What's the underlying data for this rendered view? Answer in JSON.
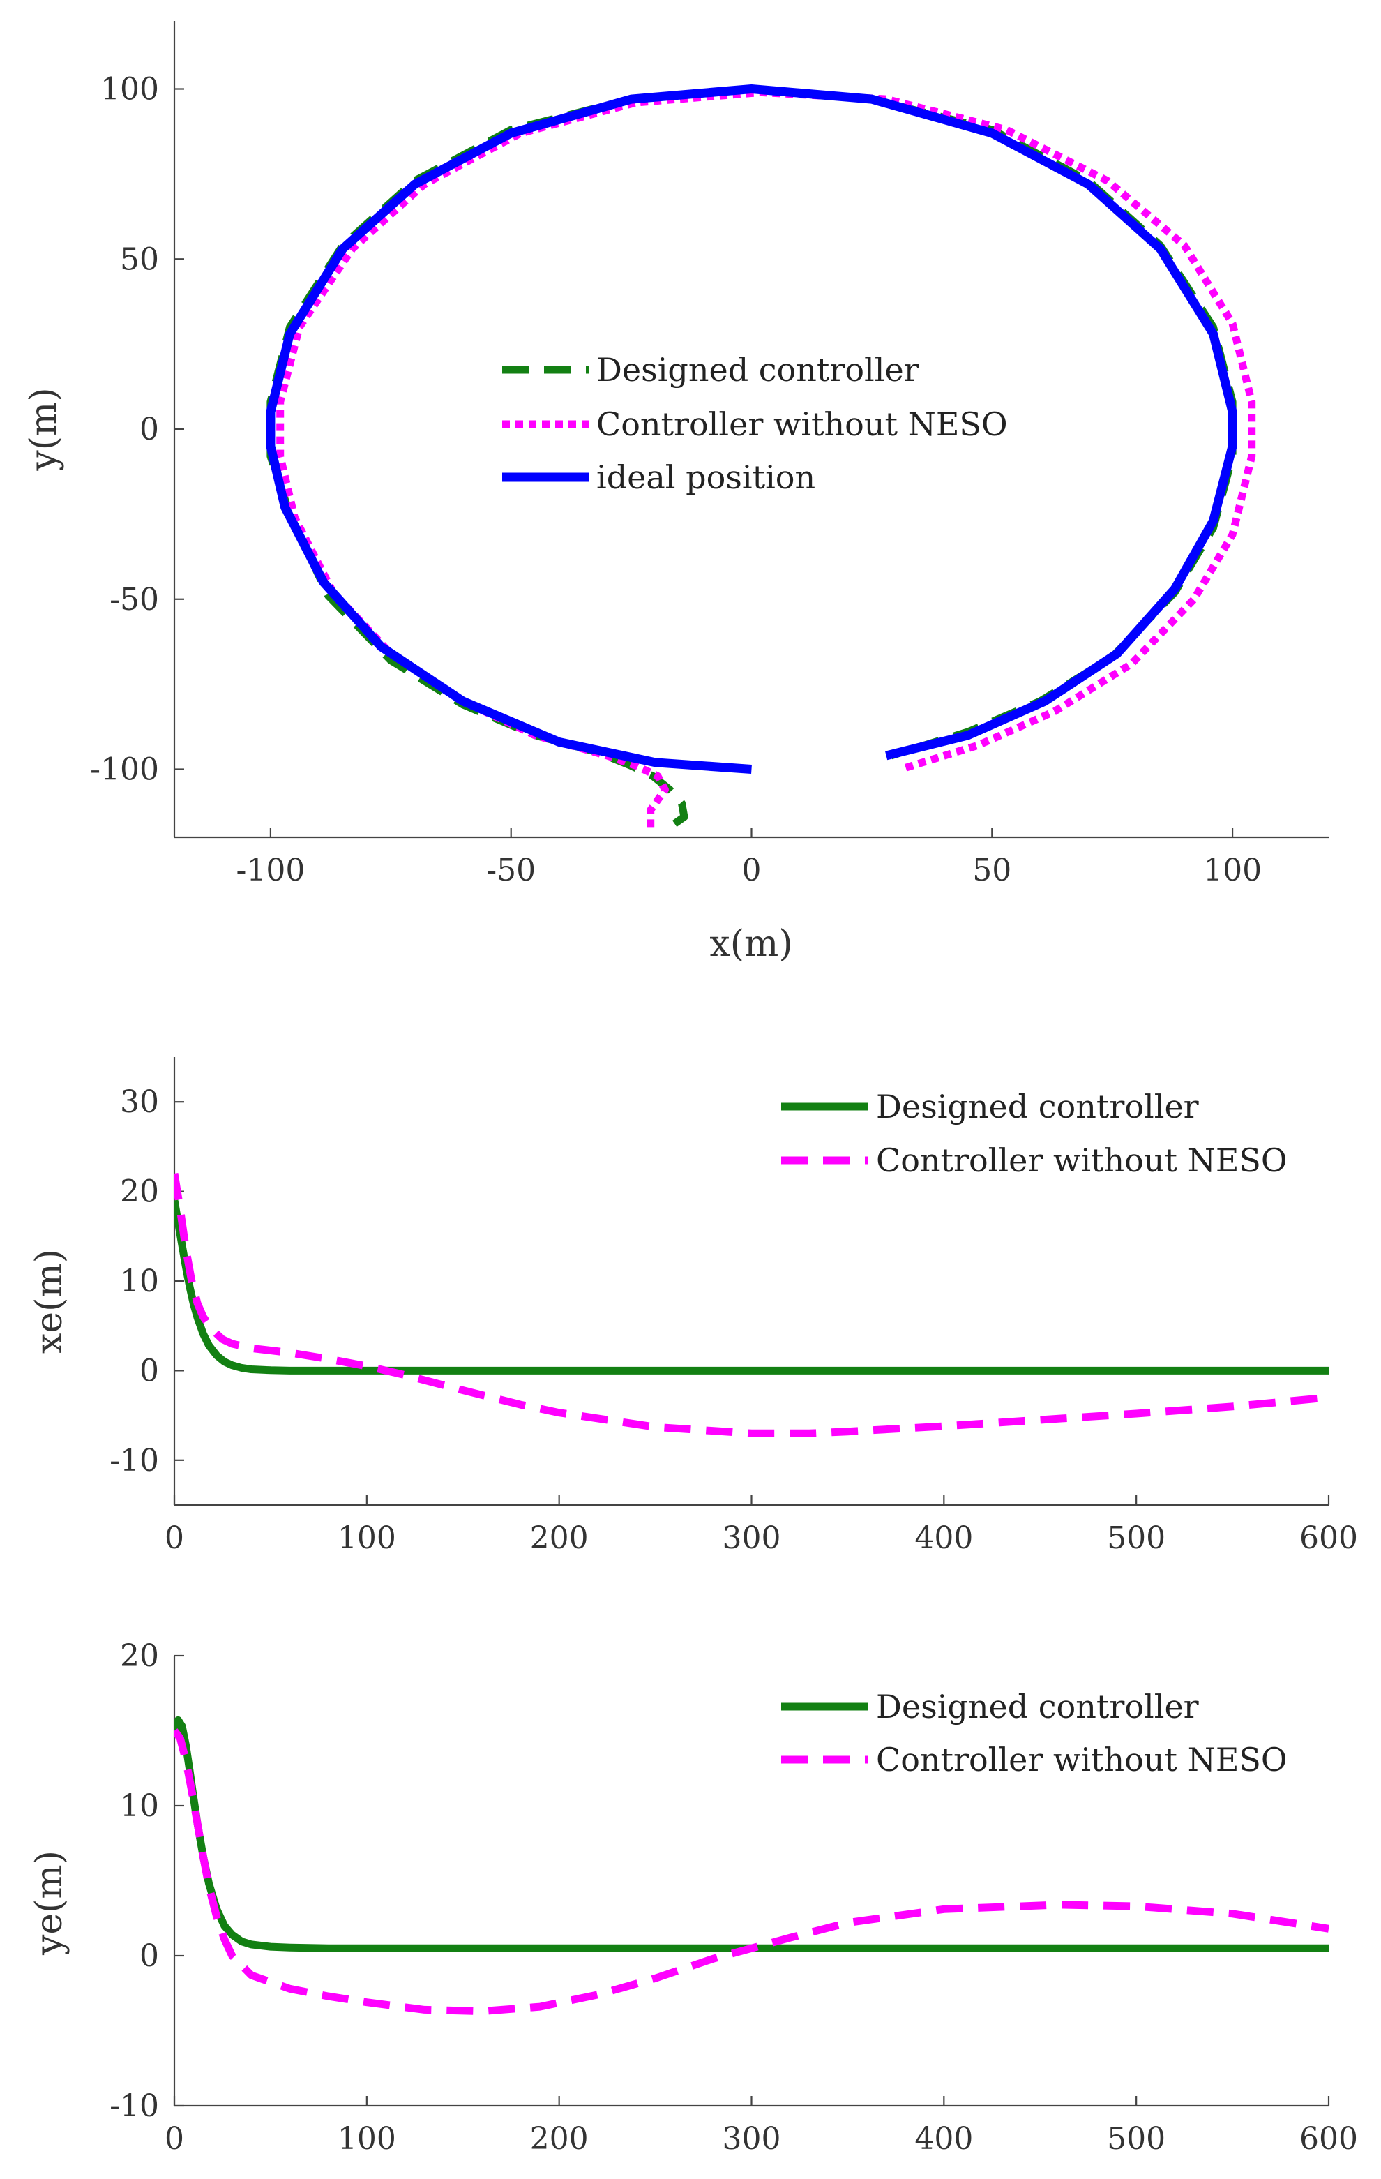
{
  "colors": {
    "designed": "#138013",
    "without_neso": "#ff00ff",
    "ideal": "#0000ff",
    "axis": "#444444"
  },
  "chart_data": [
    {
      "id": "trajectory",
      "type": "line",
      "title": "",
      "xlabel": "x(m)",
      "ylabel": "y(m)",
      "xlim": [
        -120,
        120
      ],
      "ylim": [
        -120,
        120
      ],
      "xticks": [
        -100,
        -50,
        0,
        50,
        100
      ],
      "yticks": [
        -100,
        -50,
        0,
        50,
        100
      ],
      "xtick_labels": [
        "-100",
        "-50",
        "0",
        "50",
        "100"
      ],
      "ytick_labels": [
        "-100",
        "-50",
        "0",
        "50",
        "100"
      ],
      "legend_position": "center",
      "series": [
        {
          "name": "Designed controller",
          "style": "dashed",
          "color": "#138013",
          "x": [
            -16,
            -14,
            -14.5,
            -17,
            -20.5,
            -25,
            -32,
            -45,
            -60,
            -75,
            -88,
            -96,
            -100,
            -100,
            -96,
            -85,
            -70,
            -50,
            -25,
            0,
            25,
            50,
            70,
            85,
            96,
            100,
            100,
            96,
            88,
            75,
            60,
            45,
            29
          ],
          "y": [
            -116,
            -114,
            -110,
            -106,
            -102,
            -99,
            -95,
            -90,
            -81,
            -68,
            -49,
            -25,
            -8,
            8,
            30,
            54,
            73,
            88,
            97,
            100,
            97,
            88,
            73,
            54,
            30,
            8,
            -8,
            -29,
            -48,
            -67,
            -80,
            -89,
            -96
          ]
        },
        {
          "name": "Controller without NESO",
          "style": "dotted",
          "color": "#ff00ff",
          "x": [
            -21,
            -21,
            -18,
            -19.5,
            -24,
            -30,
            -45,
            -60,
            -75,
            -87,
            -95,
            -98,
            -98,
            -94,
            -83,
            -68,
            -48,
            -24,
            2,
            28,
            53,
            74,
            90,
            100,
            104,
            104,
            100,
            92,
            79,
            63,
            47,
            31
          ],
          "y": [
            -117,
            -112,
            -106,
            -102,
            -99,
            -96,
            -90,
            -80,
            -66,
            -48,
            -26,
            -8,
            8,
            30,
            53,
            72,
            87,
            96,
            99,
            97,
            88,
            73,
            54,
            31,
            8,
            -8,
            -31,
            -50,
            -69,
            -83,
            -93,
            -100
          ]
        },
        {
          "name": "ideal position",
          "style": "solid",
          "color": "#0000ff",
          "x": [
            0,
            -20,
            -40,
            -60,
            -77,
            -89,
            -97,
            -100,
            -100,
            -96,
            -85,
            -70,
            -50,
            -25,
            0,
            25,
            50,
            70,
            85,
            96,
            100,
            100,
            96,
            88,
            76,
            61,
            45,
            28
          ],
          "y": [
            -100,
            -98,
            -92,
            -80,
            -64,
            -45,
            -23,
            -5,
            5,
            28,
            53,
            72,
            87,
            97,
            100,
            97,
            87,
            72,
            53,
            28,
            5,
            -5,
            -27,
            -47,
            -66,
            -80,
            -90,
            -96
          ]
        }
      ]
    },
    {
      "id": "xe",
      "type": "line",
      "title": "",
      "xlabel": "",
      "ylabel": "xe(m)",
      "xlim": [
        0,
        600
      ],
      "ylim": [
        -15,
        35
      ],
      "xticks": [
        0,
        100,
        200,
        300,
        400,
        500,
        600
      ],
      "yticks": [
        -10,
        0,
        10,
        20,
        30
      ],
      "xtick_labels": [
        "0",
        "100",
        "200",
        "300",
        "400",
        "500",
        "600"
      ],
      "ytick_labels": [
        "-10",
        "0",
        "10",
        "20",
        "30"
      ],
      "legend_position": "top-right",
      "series": [
        {
          "name": "Designed controller",
          "style": "solid",
          "color": "#138013",
          "x": [
            0,
            2,
            4,
            6,
            8,
            10,
            12,
            15,
            18,
            22,
            26,
            30,
            35,
            40,
            50,
            60,
            80,
            100,
            150,
            200,
            300,
            400,
            500,
            600
          ],
          "y": [
            19,
            16.5,
            14,
            11.5,
            9.3,
            7.4,
            5.9,
            4.1,
            2.8,
            1.7,
            1.0,
            0.6,
            0.3,
            0.15,
            0.05,
            0,
            0,
            0,
            0,
            0,
            0,
            0,
            0,
            0
          ]
        },
        {
          "name": "Controller without NESO",
          "style": "dashed",
          "color": "#ff00ff",
          "x": [
            0,
            3,
            6,
            9,
            12,
            15,
            20,
            25,
            30,
            40,
            60,
            80,
            100,
            120,
            150,
            180,
            200,
            250,
            300,
            330,
            350,
            400,
            450,
            500,
            550,
            600
          ],
          "y": [
            22,
            18,
            13.5,
            10,
            7.5,
            6,
            4.5,
            3.5,
            3,
            2.5,
            2,
            1.3,
            0.5,
            -0.5,
            -2.2,
            -3.8,
            -4.7,
            -6.3,
            -7,
            -7,
            -6.8,
            -6.2,
            -5.5,
            -4.8,
            -4,
            -3
          ]
        }
      ]
    },
    {
      "id": "ye",
      "type": "line",
      "title": "",
      "xlabel": "",
      "ylabel": "ye(m)",
      "xlim": [
        0,
        600
      ],
      "ylim": [
        -10,
        20
      ],
      "xticks": [
        0,
        100,
        200,
        300,
        400,
        500,
        600
      ],
      "yticks": [
        -10,
        0,
        10,
        20
      ],
      "xtick_labels": [
        "0",
        "100",
        "200",
        "300",
        "400",
        "500",
        "600"
      ],
      "ytick_labels": [
        "-10",
        "0",
        "10",
        "20"
      ],
      "legend_position": "top-right",
      "series": [
        {
          "name": "Designed controller",
          "style": "solid",
          "color": "#138013",
          "x": [
            0,
            2,
            4,
            6,
            8,
            10,
            12,
            15,
            18,
            22,
            26,
            30,
            35,
            40,
            50,
            60,
            80,
            100,
            200,
            300,
            400,
            500,
            600
          ],
          "y": [
            15,
            15.7,
            15.3,
            14,
            12.3,
            10.5,
            8.8,
            6.6,
            4.8,
            3.1,
            2.0,
            1.4,
            0.95,
            0.75,
            0.6,
            0.55,
            0.5,
            0.5,
            0.5,
            0.5,
            0.5,
            0.5,
            0.5
          ]
        },
        {
          "name": "Controller without NESO",
          "style": "dashed",
          "color": "#ff00ff",
          "x": [
            0,
            3,
            6,
            9,
            12,
            15,
            18,
            22,
            26,
            30,
            40,
            60,
            80,
            100,
            130,
            160,
            190,
            220,
            250,
            280,
            300,
            320,
            350,
            400,
            460,
            500,
            550,
            600
          ],
          "y": [
            15,
            14.5,
            13,
            11,
            8.8,
            6.6,
            4.6,
            2.6,
            1.1,
            0,
            -1.3,
            -2.2,
            -2.7,
            -3.1,
            -3.6,
            -3.7,
            -3.4,
            -2.6,
            -1.5,
            -0.2,
            0.5,
            1.2,
            2.2,
            3.1,
            3.4,
            3.3,
            2.8,
            1.8
          ]
        }
      ]
    }
  ]
}
